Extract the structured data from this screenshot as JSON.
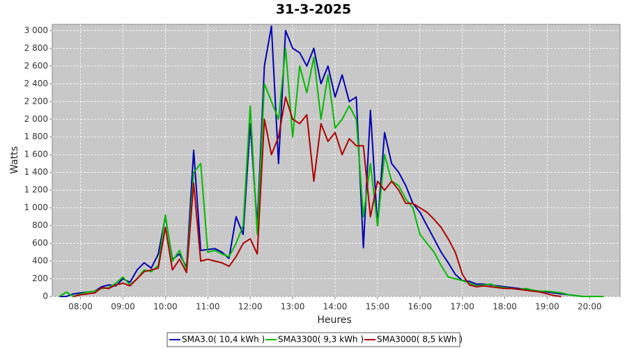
{
  "chart_data": {
    "type": "line",
    "title": "31-3-2025",
    "x_label": "Heures",
    "y_label": "Watts",
    "x": [
      450,
      460,
      470,
      480,
      490,
      500,
      510,
      520,
      530,
      540,
      550,
      560,
      570,
      580,
      590,
      600,
      610,
      620,
      630,
      640,
      650,
      660,
      670,
      680,
      690,
      700,
      710,
      720,
      730,
      740,
      750,
      760,
      770,
      780,
      790,
      800,
      810,
      820,
      830,
      840,
      850,
      860,
      870,
      880,
      890,
      900,
      910,
      920,
      930,
      940,
      950,
      960,
      970,
      980,
      990,
      1000,
      1010,
      1020,
      1030,
      1040,
      1050,
      1060,
      1070,
      1080,
      1090,
      1100,
      1110,
      1120,
      1130,
      1140,
      1150,
      1160,
      1170,
      1180,
      1190,
      1200,
      1210,
      1220,
      1230
    ],
    "series": [
      {
        "name": "SMA3.0( 10,4 kWh )",
        "color": "#0000b0",
        "values": [
          0,
          0,
          30,
          40,
          50,
          60,
          110,
          130,
          120,
          200,
          160,
          300,
          380,
          320,
          480,
          900,
          420,
          480,
          330,
          1650,
          520,
          530,
          540,
          500,
          430,
          900,
          700,
          1950,
          800,
          2600,
          3050,
          1500,
          3000,
          2800,
          2750,
          2600,
          2800,
          2400,
          2600,
          2250,
          2500,
          2200,
          2250,
          550,
          2100,
          800,
          1850,
          1500,
          1400,
          1250,
          1050,
          950,
          800,
          650,
          500,
          380,
          250,
          180,
          170,
          140,
          140,
          130,
          120,
          110,
          100,
          90,
          80,
          70,
          60,
          50,
          40,
          30,
          20,
          10,
          0,
          null,
          null,
          null,
          null
        ]
      },
      {
        "name": "SMA3300( 9,3 kWh )",
        "color": "#00bb00",
        "values": [
          0,
          50,
          0,
          30,
          50,
          60,
          90,
          100,
          150,
          220,
          130,
          200,
          300,
          280,
          350,
          920,
          400,
          520,
          300,
          1400,
          1500,
          500,
          520,
          480,
          450,
          600,
          800,
          2150,
          700,
          2400,
          2200,
          2000,
          2800,
          1800,
          2600,
          2300,
          2700,
          2000,
          2500,
          1900,
          2000,
          2150,
          2000,
          900,
          1500,
          800,
          1600,
          1300,
          1250,
          1100,
          1000,
          700,
          600,
          500,
          350,
          220,
          200,
          180,
          150,
          120,
          130,
          140,
          110,
          100,
          90,
          80,
          90,
          70,
          60,
          60,
          50,
          40,
          20,
          10,
          0,
          0,
          0,
          0,
          null
        ]
      },
      {
        "name": "SMA3000( 8,5 kWh )",
        "color": "#b00000",
        "values": [
          null,
          null,
          0,
          20,
          30,
          40,
          100,
          90,
          130,
          150,
          120,
          200,
          280,
          300,
          320,
          780,
          300,
          420,
          270,
          1280,
          400,
          420,
          400,
          380,
          340,
          450,
          600,
          650,
          480,
          2000,
          1600,
          1800,
          2250,
          2000,
          1950,
          2050,
          1300,
          1950,
          1750,
          1850,
          1600,
          1780,
          1700,
          1700,
          900,
          1300,
          1200,
          1300,
          1200,
          1050,
          1050,
          1000,
          950,
          870,
          780,
          650,
          500,
          250,
          130,
          110,
          120,
          110,
          100,
          90,
          90,
          80,
          70,
          60,
          50,
          30,
          10,
          0,
          null,
          null,
          null,
          null,
          null,
          null,
          null
        ]
      }
    ],
    "xlim": [
      440,
      1243
    ],
    "xticks": [
      {
        "value": 480,
        "label": "08:00"
      },
      {
        "value": 540,
        "label": "09:00"
      },
      {
        "value": 600,
        "label": "10:00"
      },
      {
        "value": 660,
        "label": "11:00"
      },
      {
        "value": 720,
        "label": "12:00"
      },
      {
        "value": 780,
        "label": "13:00"
      },
      {
        "value": 840,
        "label": "14:00"
      },
      {
        "value": 900,
        "label": "15:00"
      },
      {
        "value": 960,
        "label": "16:00"
      },
      {
        "value": 1020,
        "label": "17:00"
      },
      {
        "value": 1080,
        "label": "18:00"
      },
      {
        "value": 1140,
        "label": "19:00"
      },
      {
        "value": 1200,
        "label": "20:00"
      }
    ],
    "ylim": [
      0,
      3070
    ],
    "yticks": [
      0,
      200,
      400,
      600,
      800,
      {
        "value": 1000,
        "label": "1 000"
      },
      {
        "value": 1200,
        "label": "1 200"
      },
      {
        "value": 1400,
        "label": "1 400"
      },
      {
        "value": 1600,
        "label": "1 600"
      },
      {
        "value": 1800,
        "label": "1 800"
      },
      {
        "value": 2000,
        "label": "2 000"
      },
      {
        "value": 2200,
        "label": "2 200"
      },
      {
        "value": 2400,
        "label": "2 400"
      },
      {
        "value": 2600,
        "label": "2 600"
      },
      {
        "value": 2800,
        "label": "2 800"
      },
      {
        "value": 3000,
        "label": "3 000"
      }
    ],
    "grid": true,
    "legend": "bottom"
  }
}
